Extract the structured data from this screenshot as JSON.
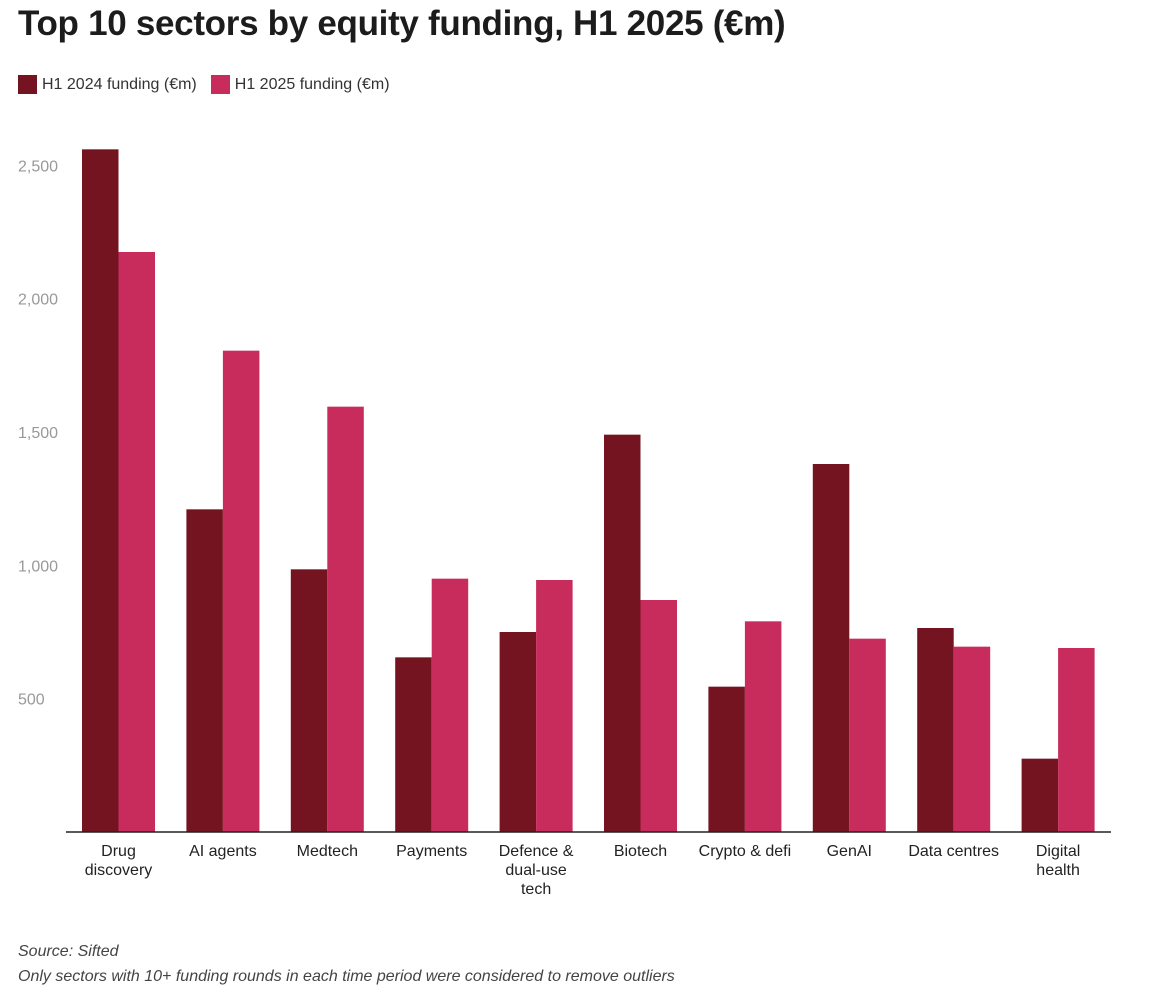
{
  "chart_data": {
    "type": "bar",
    "title": "Top 10 sectors by equity funding, H1 2025 (€m)",
    "categories": [
      [
        "Drug",
        "discovery"
      ],
      [
        "AI agents"
      ],
      [
        "Medtech"
      ],
      [
        "Payments"
      ],
      [
        "Defence &",
        "dual-use",
        "tech"
      ],
      [
        "Biotech"
      ],
      [
        "Crypto & defi"
      ],
      [
        "GenAI"
      ],
      [
        "Data centres"
      ],
      [
        "Digital",
        "health"
      ]
    ],
    "series": [
      {
        "name": "H1 2024 funding (€m)",
        "color": "#731420",
        "values": [
          2560,
          1210,
          985,
          655,
          750,
          1490,
          545,
          1380,
          765,
          275
        ]
      },
      {
        "name": "H1 2025 funding (€m)",
        "color": "#c72c5c",
        "values": [
          2175,
          1805,
          1595,
          950,
          945,
          870,
          790,
          725,
          695,
          690
        ]
      }
    ],
    "y_ticks": [
      "500",
      "1,000",
      "1,500",
      "2,000",
      "2,500"
    ],
    "ylim": [
      0,
      2500
    ],
    "grid": false,
    "legend_position": "top-left"
  },
  "footer": {
    "source": "Source: Sifted",
    "note": "Only sectors with 10+ funding rounds in each time period were considered to remove outliers"
  }
}
